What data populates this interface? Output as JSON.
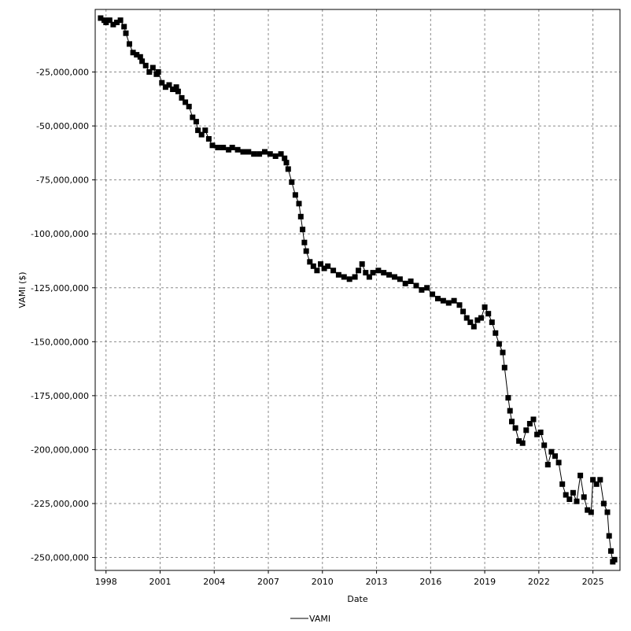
{
  "chart_data": {
    "type": "line",
    "xlabel": "Date",
    "ylabel": "VAMI ($)",
    "xlim": [
      1997.4,
      2026.5
    ],
    "ylim": [
      -256000000,
      4000000
    ],
    "x_ticks": [
      1998,
      2001,
      2004,
      2007,
      2010,
      2013,
      2016,
      2019,
      2022,
      2025
    ],
    "y_ticks": [
      -250000000,
      -225000000,
      -200000000,
      -175000000,
      -150000000,
      -125000000,
      -100000000,
      -75000000,
      -50000000,
      -25000000
    ],
    "y_tick_labels": [
      "-250,000,000",
      "-225,000,000",
      "-200,000,000",
      "-175,000,000",
      "-150,000,000",
      "-125,000,000",
      "-100,000,000",
      "-75,000,000",
      "-50,000,000",
      "-25,000,000"
    ],
    "grid": true,
    "legend": {
      "position": "bottom-center",
      "entries": [
        "VAMI"
      ]
    },
    "series": [
      {
        "name": "VAMI",
        "color": "#000000",
        "marker": "square",
        "points": [
          [
            1997.7,
            0
          ],
          [
            1997.9,
            -1000000
          ],
          [
            1998.0,
            -2000000
          ],
          [
            1998.2,
            -1000000
          ],
          [
            1998.4,
            -3000000
          ],
          [
            1998.6,
            -2000000
          ],
          [
            1998.8,
            -1000000
          ],
          [
            1999.0,
            -4000000
          ],
          [
            1999.1,
            -7000000
          ],
          [
            1999.3,
            -12000000
          ],
          [
            1999.5,
            -16000000
          ],
          [
            1999.7,
            -17000000
          ],
          [
            1999.9,
            -18000000
          ],
          [
            2000.0,
            -20000000
          ],
          [
            2000.2,
            -22000000
          ],
          [
            2000.4,
            -25000000
          ],
          [
            2000.6,
            -23000000
          ],
          [
            2000.8,
            -26000000
          ],
          [
            2000.9,
            -25000000
          ],
          [
            2001.1,
            -30000000
          ],
          [
            2001.3,
            -32000000
          ],
          [
            2001.5,
            -31000000
          ],
          [
            2001.7,
            -33000000
          ],
          [
            2001.9,
            -32000000
          ],
          [
            2002.0,
            -34000000
          ],
          [
            2002.2,
            -37000000
          ],
          [
            2002.4,
            -39000000
          ],
          [
            2002.6,
            -41000000
          ],
          [
            2002.8,
            -46000000
          ],
          [
            2003.0,
            -48000000
          ],
          [
            2003.1,
            -52000000
          ],
          [
            2003.3,
            -54000000
          ],
          [
            2003.5,
            -52000000
          ],
          [
            2003.7,
            -56000000
          ],
          [
            2003.9,
            -59000000
          ],
          [
            2004.2,
            -60000000
          ],
          [
            2004.5,
            -60000000
          ],
          [
            2004.8,
            -61000000
          ],
          [
            2005.0,
            -60000000
          ],
          [
            2005.3,
            -61000000
          ],
          [
            2005.6,
            -62000000
          ],
          [
            2005.9,
            -62000000
          ],
          [
            2006.2,
            -63000000
          ],
          [
            2006.5,
            -63000000
          ],
          [
            2006.8,
            -62000000
          ],
          [
            2007.1,
            -63000000
          ],
          [
            2007.4,
            -64000000
          ],
          [
            2007.7,
            -63000000
          ],
          [
            2007.9,
            -65000000
          ],
          [
            2008.0,
            -67000000
          ],
          [
            2008.1,
            -70000000
          ],
          [
            2008.3,
            -76000000
          ],
          [
            2008.5,
            -82000000
          ],
          [
            2008.7,
            -86000000
          ],
          [
            2008.8,
            -92000000
          ],
          [
            2008.9,
            -98000000
          ],
          [
            2009.0,
            -104000000
          ],
          [
            2009.1,
            -108000000
          ],
          [
            2009.3,
            -113000000
          ],
          [
            2009.5,
            -115000000
          ],
          [
            2009.7,
            -117000000
          ],
          [
            2009.9,
            -114000000
          ],
          [
            2010.1,
            -116000000
          ],
          [
            2010.3,
            -115000000
          ],
          [
            2010.6,
            -117000000
          ],
          [
            2010.9,
            -119000000
          ],
          [
            2011.2,
            -120000000
          ],
          [
            2011.5,
            -121000000
          ],
          [
            2011.8,
            -120000000
          ],
          [
            2012.0,
            -117000000
          ],
          [
            2012.2,
            -114000000
          ],
          [
            2012.4,
            -118000000
          ],
          [
            2012.6,
            -120000000
          ],
          [
            2012.8,
            -118000000
          ],
          [
            2013.1,
            -117000000
          ],
          [
            2013.4,
            -118000000
          ],
          [
            2013.7,
            -119000000
          ],
          [
            2014.0,
            -120000000
          ],
          [
            2014.3,
            -121000000
          ],
          [
            2014.6,
            -123000000
          ],
          [
            2014.9,
            -122000000
          ],
          [
            2015.2,
            -124000000
          ],
          [
            2015.5,
            -126000000
          ],
          [
            2015.8,
            -125000000
          ],
          [
            2016.1,
            -128000000
          ],
          [
            2016.4,
            -130000000
          ],
          [
            2016.7,
            -131000000
          ],
          [
            2017.0,
            -132000000
          ],
          [
            2017.3,
            -131000000
          ],
          [
            2017.6,
            -133000000
          ],
          [
            2017.8,
            -136000000
          ],
          [
            2018.0,
            -139000000
          ],
          [
            2018.2,
            -141000000
          ],
          [
            2018.4,
            -143000000
          ],
          [
            2018.6,
            -140000000
          ],
          [
            2018.8,
            -139000000
          ],
          [
            2019.0,
            -134000000
          ],
          [
            2019.2,
            -137000000
          ],
          [
            2019.4,
            -141000000
          ],
          [
            2019.6,
            -146000000
          ],
          [
            2019.8,
            -151000000
          ],
          [
            2020.0,
            -155000000
          ],
          [
            2020.1,
            -162000000
          ],
          [
            2020.3,
            -176000000
          ],
          [
            2020.4,
            -182000000
          ],
          [
            2020.5,
            -187000000
          ],
          [
            2020.7,
            -190000000
          ],
          [
            2020.9,
            -196000000
          ],
          [
            2021.1,
            -197000000
          ],
          [
            2021.3,
            -191000000
          ],
          [
            2021.5,
            -188000000
          ],
          [
            2021.7,
            -186000000
          ],
          [
            2021.9,
            -193000000
          ],
          [
            2022.1,
            -192000000
          ],
          [
            2022.3,
            -198000000
          ],
          [
            2022.5,
            -207000000
          ],
          [
            2022.7,
            -201000000
          ],
          [
            2022.9,
            -203000000
          ],
          [
            2023.1,
            -206000000
          ],
          [
            2023.3,
            -216000000
          ],
          [
            2023.5,
            -221000000
          ],
          [
            2023.7,
            -223000000
          ],
          [
            2023.9,
            -220000000
          ],
          [
            2024.1,
            -224000000
          ],
          [
            2024.3,
            -212000000
          ],
          [
            2024.5,
            -222000000
          ],
          [
            2024.7,
            -228000000
          ],
          [
            2024.9,
            -229000000
          ],
          [
            2025.0,
            -214000000
          ],
          [
            2025.2,
            -216000000
          ],
          [
            2025.4,
            -214000000
          ],
          [
            2025.6,
            -225000000
          ],
          [
            2025.8,
            -229000000
          ],
          [
            2025.9,
            -240000000
          ],
          [
            2026.0,
            -247000000
          ],
          [
            2026.1,
            -252000000
          ],
          [
            2026.2,
            -251000000
          ]
        ]
      }
    ]
  }
}
